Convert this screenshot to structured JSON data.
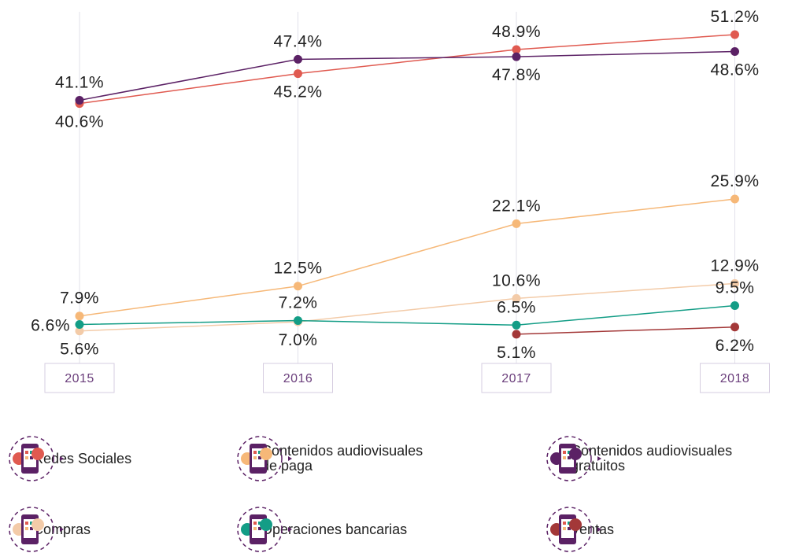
{
  "chart_data": {
    "type": "line",
    "categories": [
      "2015",
      "2016",
      "2017",
      "2018"
    ],
    "series": [
      {
        "name": "Redes Sociales",
        "color": "#e05a50",
        "values": [
          40.6,
          45.2,
          48.9,
          51.2
        ],
        "value_labels": [
          "40.6%",
          "45.2%",
          "48.9%",
          "51.2%"
        ]
      },
      {
        "name": "Contenidos audiovisuales de paga",
        "color": "#f6b878",
        "values": [
          7.9,
          12.5,
          22.1,
          25.9
        ],
        "value_labels": [
          "7.9%",
          "12.5%",
          "22.1%",
          "25.9%"
        ]
      },
      {
        "name": "Contenidos audiovisuales gratuitos",
        "color": "#5b2165",
        "values": [
          41.1,
          47.4,
          47.8,
          48.6
        ],
        "value_labels": [
          "41.1%",
          "47.4%",
          "47.8%",
          "48.6%"
        ]
      },
      {
        "name": "Compras",
        "color": "#f3cba8",
        "values": [
          5.6,
          7.0,
          10.6,
          12.9
        ],
        "value_labels": [
          "5.6%",
          "7.0%",
          "10.6%",
          "12.9%"
        ]
      },
      {
        "name": "Operaciones bancarias",
        "color": "#139d86",
        "values": [
          6.6,
          7.2,
          6.5,
          9.5
        ],
        "value_labels": [
          "6.6%",
          "7.2%",
          "6.5%",
          "9.5%"
        ]
      },
      {
        "name": "Ventas",
        "color": "#a33838",
        "values": [
          null,
          null,
          5.1,
          6.2
        ],
        "value_labels": [
          null,
          null,
          "5.1%",
          "6.2%"
        ]
      }
    ]
  }
}
